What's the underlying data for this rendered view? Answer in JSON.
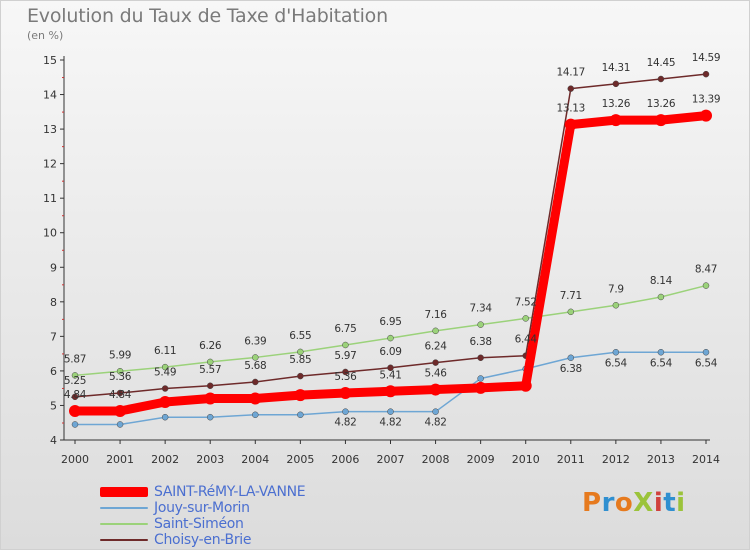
{
  "header": {
    "title": "Evolution du Taux de Taxe d'Habitation",
    "unit": "(en %)"
  },
  "legend": {
    "items": [
      {
        "label": "SAINT-RéMY-LA-VANNE",
        "color": "#ff0000"
      },
      {
        "label": "Jouy-sur-Morin",
        "color": "#6ea6d4"
      },
      {
        "label": "Saint-Siméon",
        "color": "#9bd27a"
      },
      {
        "label": "Choisy-en-Brie",
        "color": "#6e2a2a"
      }
    ]
  },
  "logo": {
    "text": "ProXiti",
    "colors": [
      "#e67a1e",
      "#2f8fd0",
      "#e67a1e",
      "#9bc33a",
      "#d0413d",
      "#2f8fd0",
      "#9bc33a"
    ]
  },
  "chart_data": {
    "type": "line",
    "title": "Evolution du Taux de Taxe d'Habitation",
    "ylabel": "(en %)",
    "xlabel": "",
    "x": [
      "2000",
      "2001",
      "2002",
      "2003",
      "2004",
      "2005",
      "2006",
      "2007",
      "2008",
      "2009",
      "2010",
      "2011",
      "2012",
      "2013",
      "2014"
    ],
    "ylim": [
      4,
      15
    ],
    "yticks": [
      4,
      5,
      6,
      7,
      8,
      9,
      10,
      11,
      12,
      13,
      14,
      15
    ],
    "grid": false,
    "legend_position": "bottom-left",
    "series": [
      {
        "name": "SAINT-RéMY-LA-VANNE",
        "color": "#ff0000",
        "values": [
          4.84,
          4.84,
          5.1,
          5.2,
          5.2,
          5.3,
          5.36,
          5.41,
          5.46,
          5.51,
          5.57,
          13.13,
          13.26,
          13.26,
          13.39
        ],
        "labels": [
          "4.84",
          "4.84",
          "",
          "",
          "",
          "",
          "5.36",
          "5.41",
          "5.46",
          "",
          "",
          "13.13",
          "13.26",
          "13.26",
          "13.39"
        ]
      },
      {
        "name": "Jouy-sur-Morin",
        "color": "#6ea6d4",
        "values": [
          4.45,
          4.45,
          4.66,
          4.66,
          4.73,
          4.73,
          4.82,
          4.82,
          4.82,
          5.78,
          6.06,
          6.38,
          6.54,
          6.54,
          6.54
        ],
        "labels": [
          "",
          "",
          "",
          "",
          "",
          "",
          "4.82",
          "4.82",
          "4.82",
          "",
          "",
          "6.38",
          "6.54",
          "6.54",
          "6.54"
        ]
      },
      {
        "name": "Saint-Siméon",
        "color": "#9bd27a",
        "values": [
          5.87,
          5.99,
          6.11,
          6.26,
          6.39,
          6.55,
          6.75,
          6.95,
          7.16,
          7.34,
          7.52,
          7.71,
          7.9,
          8.14,
          8.47
        ],
        "labels": [
          "5.87",
          "5.99",
          "6.11",
          "6.26",
          "6.39",
          "6.55",
          "6.75",
          "6.95",
          "7.16",
          "7.34",
          "7.52",
          "7.71",
          "7.9",
          "8.14",
          "8.47"
        ]
      },
      {
        "name": "Choisy-en-Brie",
        "color": "#6e2a2a",
        "values": [
          5.25,
          5.36,
          5.49,
          5.57,
          5.68,
          5.85,
          5.97,
          6.09,
          6.24,
          6.38,
          6.44,
          14.17,
          14.31,
          14.45,
          14.59
        ],
        "labels": [
          "5.25",
          "5.36",
          "5.49",
          "5.57",
          "5.68",
          "5.85",
          "5.97",
          "6.09",
          "6.24",
          "6.38",
          "6.44",
          "14.17",
          "14.31",
          "14.45",
          "14.59"
        ]
      }
    ]
  }
}
